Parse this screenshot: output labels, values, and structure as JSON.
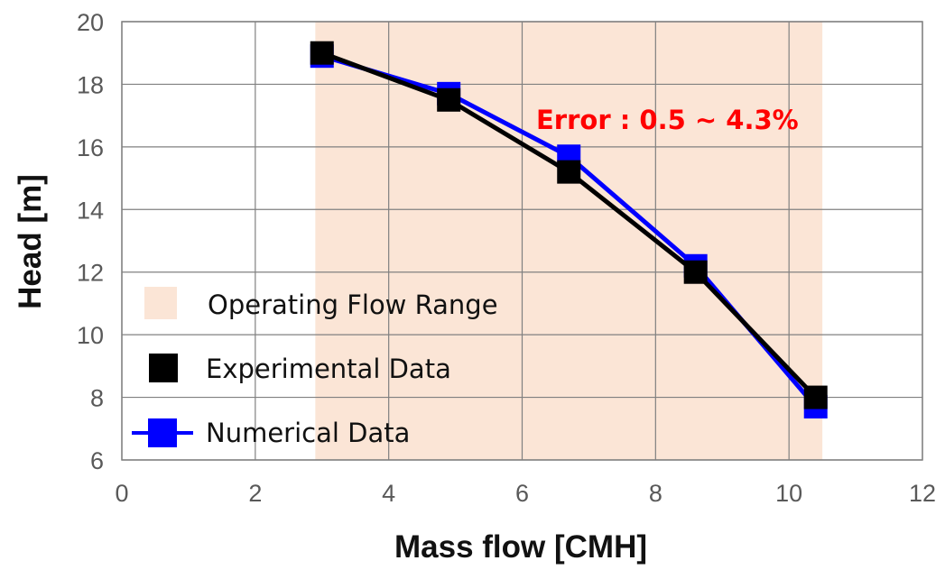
{
  "chart_data": {
    "type": "line",
    "xlabel": "Mass flow [CMH]",
    "ylabel": "Head [m]",
    "xlim": [
      0,
      12
    ],
    "ylim": [
      6,
      20
    ],
    "x_ticks": [
      0,
      2,
      4,
      6,
      8,
      10,
      12
    ],
    "y_ticks": [
      6,
      8,
      10,
      12,
      14,
      16,
      18,
      20
    ],
    "grid": true,
    "operating_range": {
      "name": "Operating Flow Range",
      "x_start": 2.9,
      "x_end": 10.5,
      "color": "#fbe5d6"
    },
    "series": [
      {
        "name": "Experimental Data",
        "color": "#000000",
        "marker": "square",
        "x": [
          3.0,
          4.9,
          6.7,
          8.6,
          10.4
        ],
        "y": [
          19.0,
          17.5,
          15.2,
          12.0,
          8.0
        ]
      },
      {
        "name": "Numerical Data",
        "color": "#0000ff",
        "marker": "square",
        "x": [
          3.0,
          4.9,
          6.7,
          8.6,
          10.4
        ],
        "y": [
          18.9,
          17.7,
          15.7,
          12.2,
          7.7
        ]
      }
    ],
    "annotation": {
      "text": "Error : 0.5 ~ 4.3%",
      "color": "#ff0000"
    },
    "legend_placement": "lower-left"
  }
}
